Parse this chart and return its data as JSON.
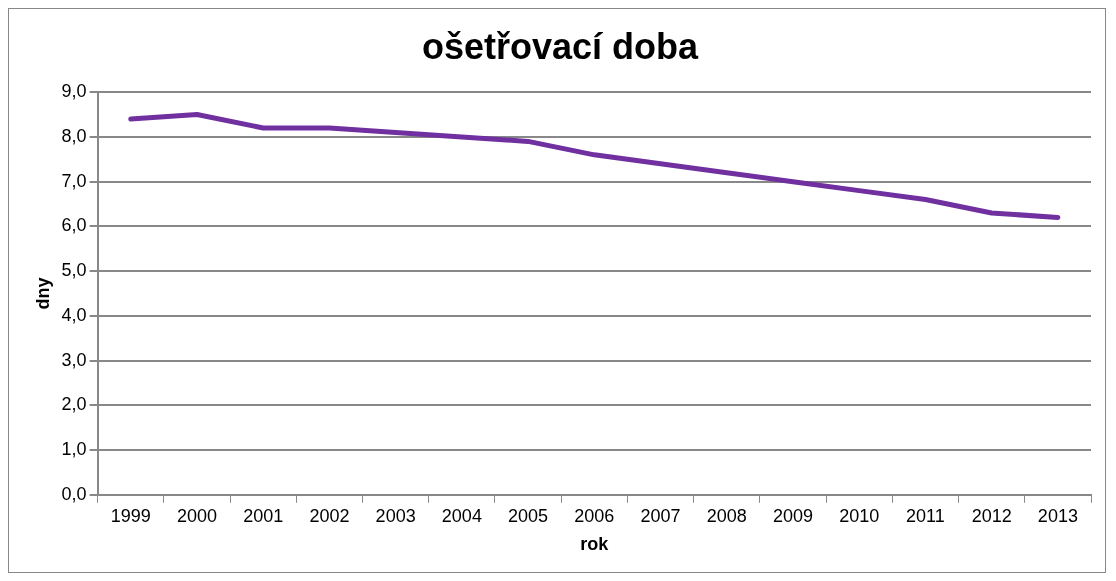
{
  "chart_data": {
    "type": "line",
    "title": "ošetřovací doba",
    "xlabel": "rok",
    "ylabel": "dny",
    "categories": [
      "1999",
      "2000",
      "2001",
      "2002",
      "2003",
      "2004",
      "2005",
      "2006",
      "2007",
      "2008",
      "2009",
      "2010",
      "2011",
      "2012",
      "2013"
    ],
    "series": [
      {
        "color": "#7030a0",
        "values": [
          8.4,
          8.5,
          8.2,
          8.2,
          8.1,
          8.0,
          7.9,
          7.6,
          7.4,
          7.2,
          7.0,
          6.8,
          6.6,
          6.3,
          6.2
        ]
      }
    ],
    "ylim": [
      0,
      9
    ],
    "yticks": [
      {
        "value": 0,
        "label": "0,0"
      },
      {
        "value": 1,
        "label": "1,0"
      },
      {
        "value": 2,
        "label": "2,0"
      },
      {
        "value": 3,
        "label": "3,0"
      },
      {
        "value": 4,
        "label": "4,0"
      },
      {
        "value": 5,
        "label": "5,0"
      },
      {
        "value": 6,
        "label": "6,0"
      },
      {
        "value": 7,
        "label": "7,0"
      },
      {
        "value": 8,
        "label": "8,0"
      },
      {
        "value": 9,
        "label": "9,0"
      }
    ],
    "grid": "y",
    "legend": false,
    "marker": "none",
    "line_style": "solid"
  }
}
